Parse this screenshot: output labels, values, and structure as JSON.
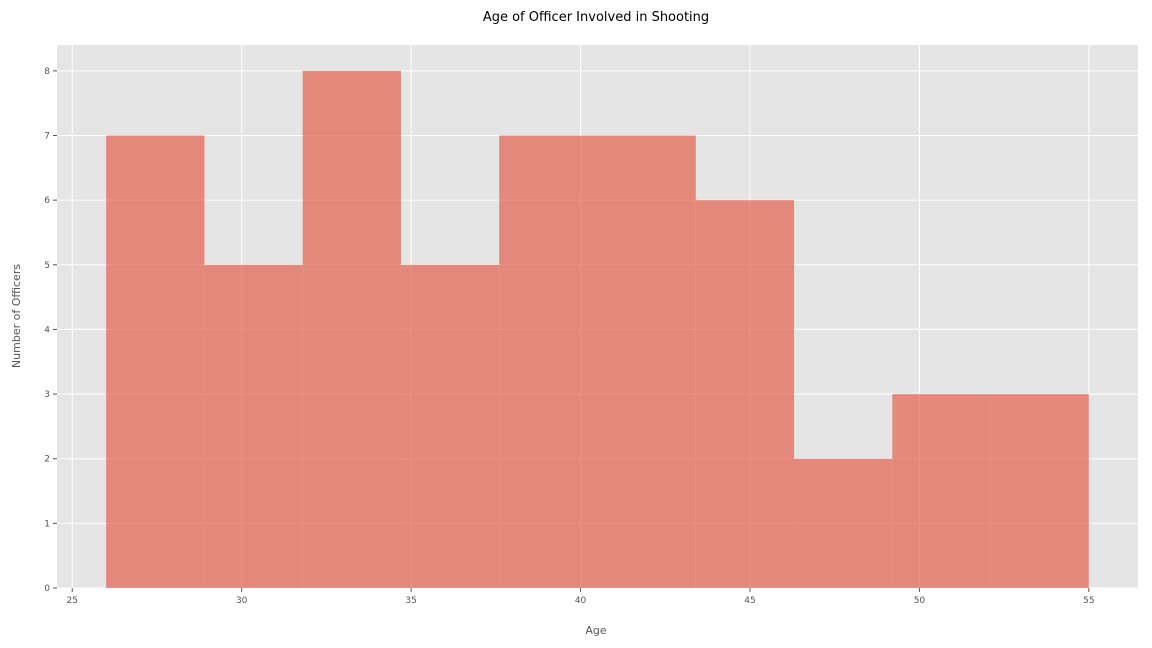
{
  "chart_data": {
    "type": "bar",
    "title": "Age of Officer Involved in Shooting",
    "xlabel": "Age",
    "ylabel": "Number of Officers",
    "xlim": [
      24.55,
      56.45
    ],
    "ylim": [
      0,
      8.4
    ],
    "xticks": [
      25,
      30,
      35,
      40,
      45,
      50,
      55
    ],
    "yticks": [
      0,
      1,
      2,
      3,
      4,
      5,
      6,
      7,
      8
    ],
    "bins": [
      {
        "start": 26.0,
        "end": 28.9,
        "count": 7
      },
      {
        "start": 28.9,
        "end": 31.8,
        "count": 5
      },
      {
        "start": 31.8,
        "end": 34.7,
        "count": 8
      },
      {
        "start": 34.7,
        "end": 37.6,
        "count": 5
      },
      {
        "start": 37.6,
        "end": 40.5,
        "count": 7
      },
      {
        "start": 40.5,
        "end": 43.4,
        "count": 7
      },
      {
        "start": 43.4,
        "end": 46.3,
        "count": 6
      },
      {
        "start": 46.3,
        "end": 49.2,
        "count": 2
      },
      {
        "start": 49.2,
        "end": 52.1,
        "count": 3
      },
      {
        "start": 52.1,
        "end": 55.0,
        "count": 3
      }
    ],
    "grid": true,
    "colors": {
      "bar": "#e24a33",
      "bar_opacity": 0.6,
      "plot_background": "#e5e5e5",
      "grid": "#ffffff"
    }
  }
}
